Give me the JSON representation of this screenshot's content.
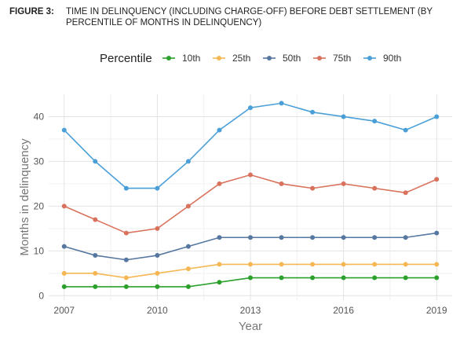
{
  "figure": {
    "label": "FIGURE 3:",
    "title": "TIME IN DELINQUENCY (INCLUDING CHARGE-OFF) BEFORE DEBT SETTLEMENT (BY PERCENTILE OF MONTHS IN DELINQUENCY)"
  },
  "chart_data": {
    "type": "line",
    "x": [
      2007,
      2008,
      2009,
      2010,
      2011,
      2012,
      2013,
      2014,
      2015,
      2016,
      2017,
      2018,
      2019
    ],
    "xticks": [
      "2007",
      "2010",
      "2013",
      "2016",
      "2019"
    ],
    "yticks": [
      "0",
      "10",
      "20",
      "30",
      "40"
    ],
    "xlabel": "Year",
    "ylabel": "Months in delinquency",
    "xlim": [
      2006.5,
      2019.5
    ],
    "ylim": [
      -1,
      45
    ],
    "grid": true,
    "legend": {
      "title": "Percentile",
      "position": "top"
    },
    "series": [
      {
        "name": "10th",
        "color": "#2ca02c",
        "values": [
          2,
          2,
          2,
          2,
          2,
          3,
          4,
          4,
          4,
          4,
          4,
          4,
          4
        ]
      },
      {
        "name": "25th",
        "color": "#f5b754",
        "values": [
          5,
          5,
          4,
          5,
          6,
          7,
          7,
          7,
          7,
          7,
          7,
          7,
          7
        ]
      },
      {
        "name": "50th",
        "color": "#5577a0",
        "values": [
          11,
          9,
          8,
          9,
          11,
          13,
          13,
          13,
          13,
          13,
          13,
          13,
          14
        ]
      },
      {
        "name": "75th",
        "color": "#d9725c",
        "values": [
          20,
          17,
          14,
          15,
          20,
          25,
          27,
          25,
          24,
          25,
          24,
          23,
          26
        ]
      },
      {
        "name": "90th",
        "color": "#4a9fd8",
        "values": [
          37,
          30,
          24,
          24,
          30,
          37,
          42,
          43,
          41,
          40,
          39,
          37,
          40
        ]
      }
    ]
  }
}
